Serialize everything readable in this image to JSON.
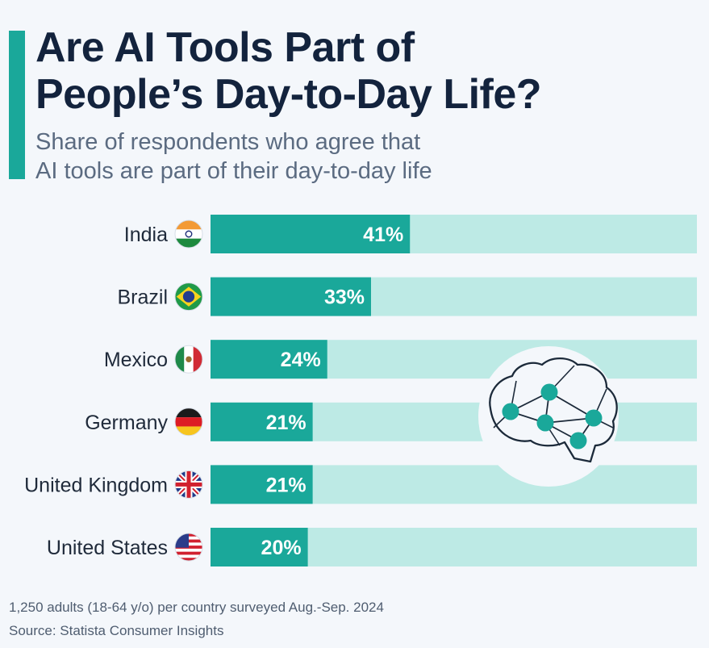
{
  "header": {
    "title_line1": "Are AI Tools Part of",
    "title_line2": "People’s Day-to-Day Life?",
    "subtitle_line1": "Share of respondents who agree that",
    "subtitle_line2": "AI tools are part of their day-to-day life"
  },
  "colors": {
    "accent": "#1aa89a",
    "bar_fill": "#1aa89a",
    "bar_track": "#bdeae5",
    "title": "#13233d",
    "text": "#5b6b81",
    "label": "#1f2a3a"
  },
  "chart_data": {
    "type": "bar",
    "orientation": "horizontal",
    "categories": [
      "India",
      "Brazil",
      "Mexico",
      "Germany",
      "United Kingdom",
      "United States"
    ],
    "values": [
      41,
      33,
      24,
      21,
      21,
      20
    ],
    "value_labels": [
      "41%",
      "33%",
      "24%",
      "21%",
      "21%",
      "20%"
    ],
    "category_icons": [
      "india-flag-icon",
      "brazil-flag-icon",
      "mexico-flag-icon",
      "germany-flag-icon",
      "united-kingdom-flag-icon",
      "united-states-flag-icon"
    ],
    "xlim": [
      0,
      100
    ],
    "grid": false,
    "legend": "none",
    "decoration": "brain-network-icon"
  },
  "footer": {
    "note": "1,250 adults (18-64 y/o) per country surveyed Aug.-Sep. 2024",
    "source": "Source: Statista Consumer Insights"
  }
}
